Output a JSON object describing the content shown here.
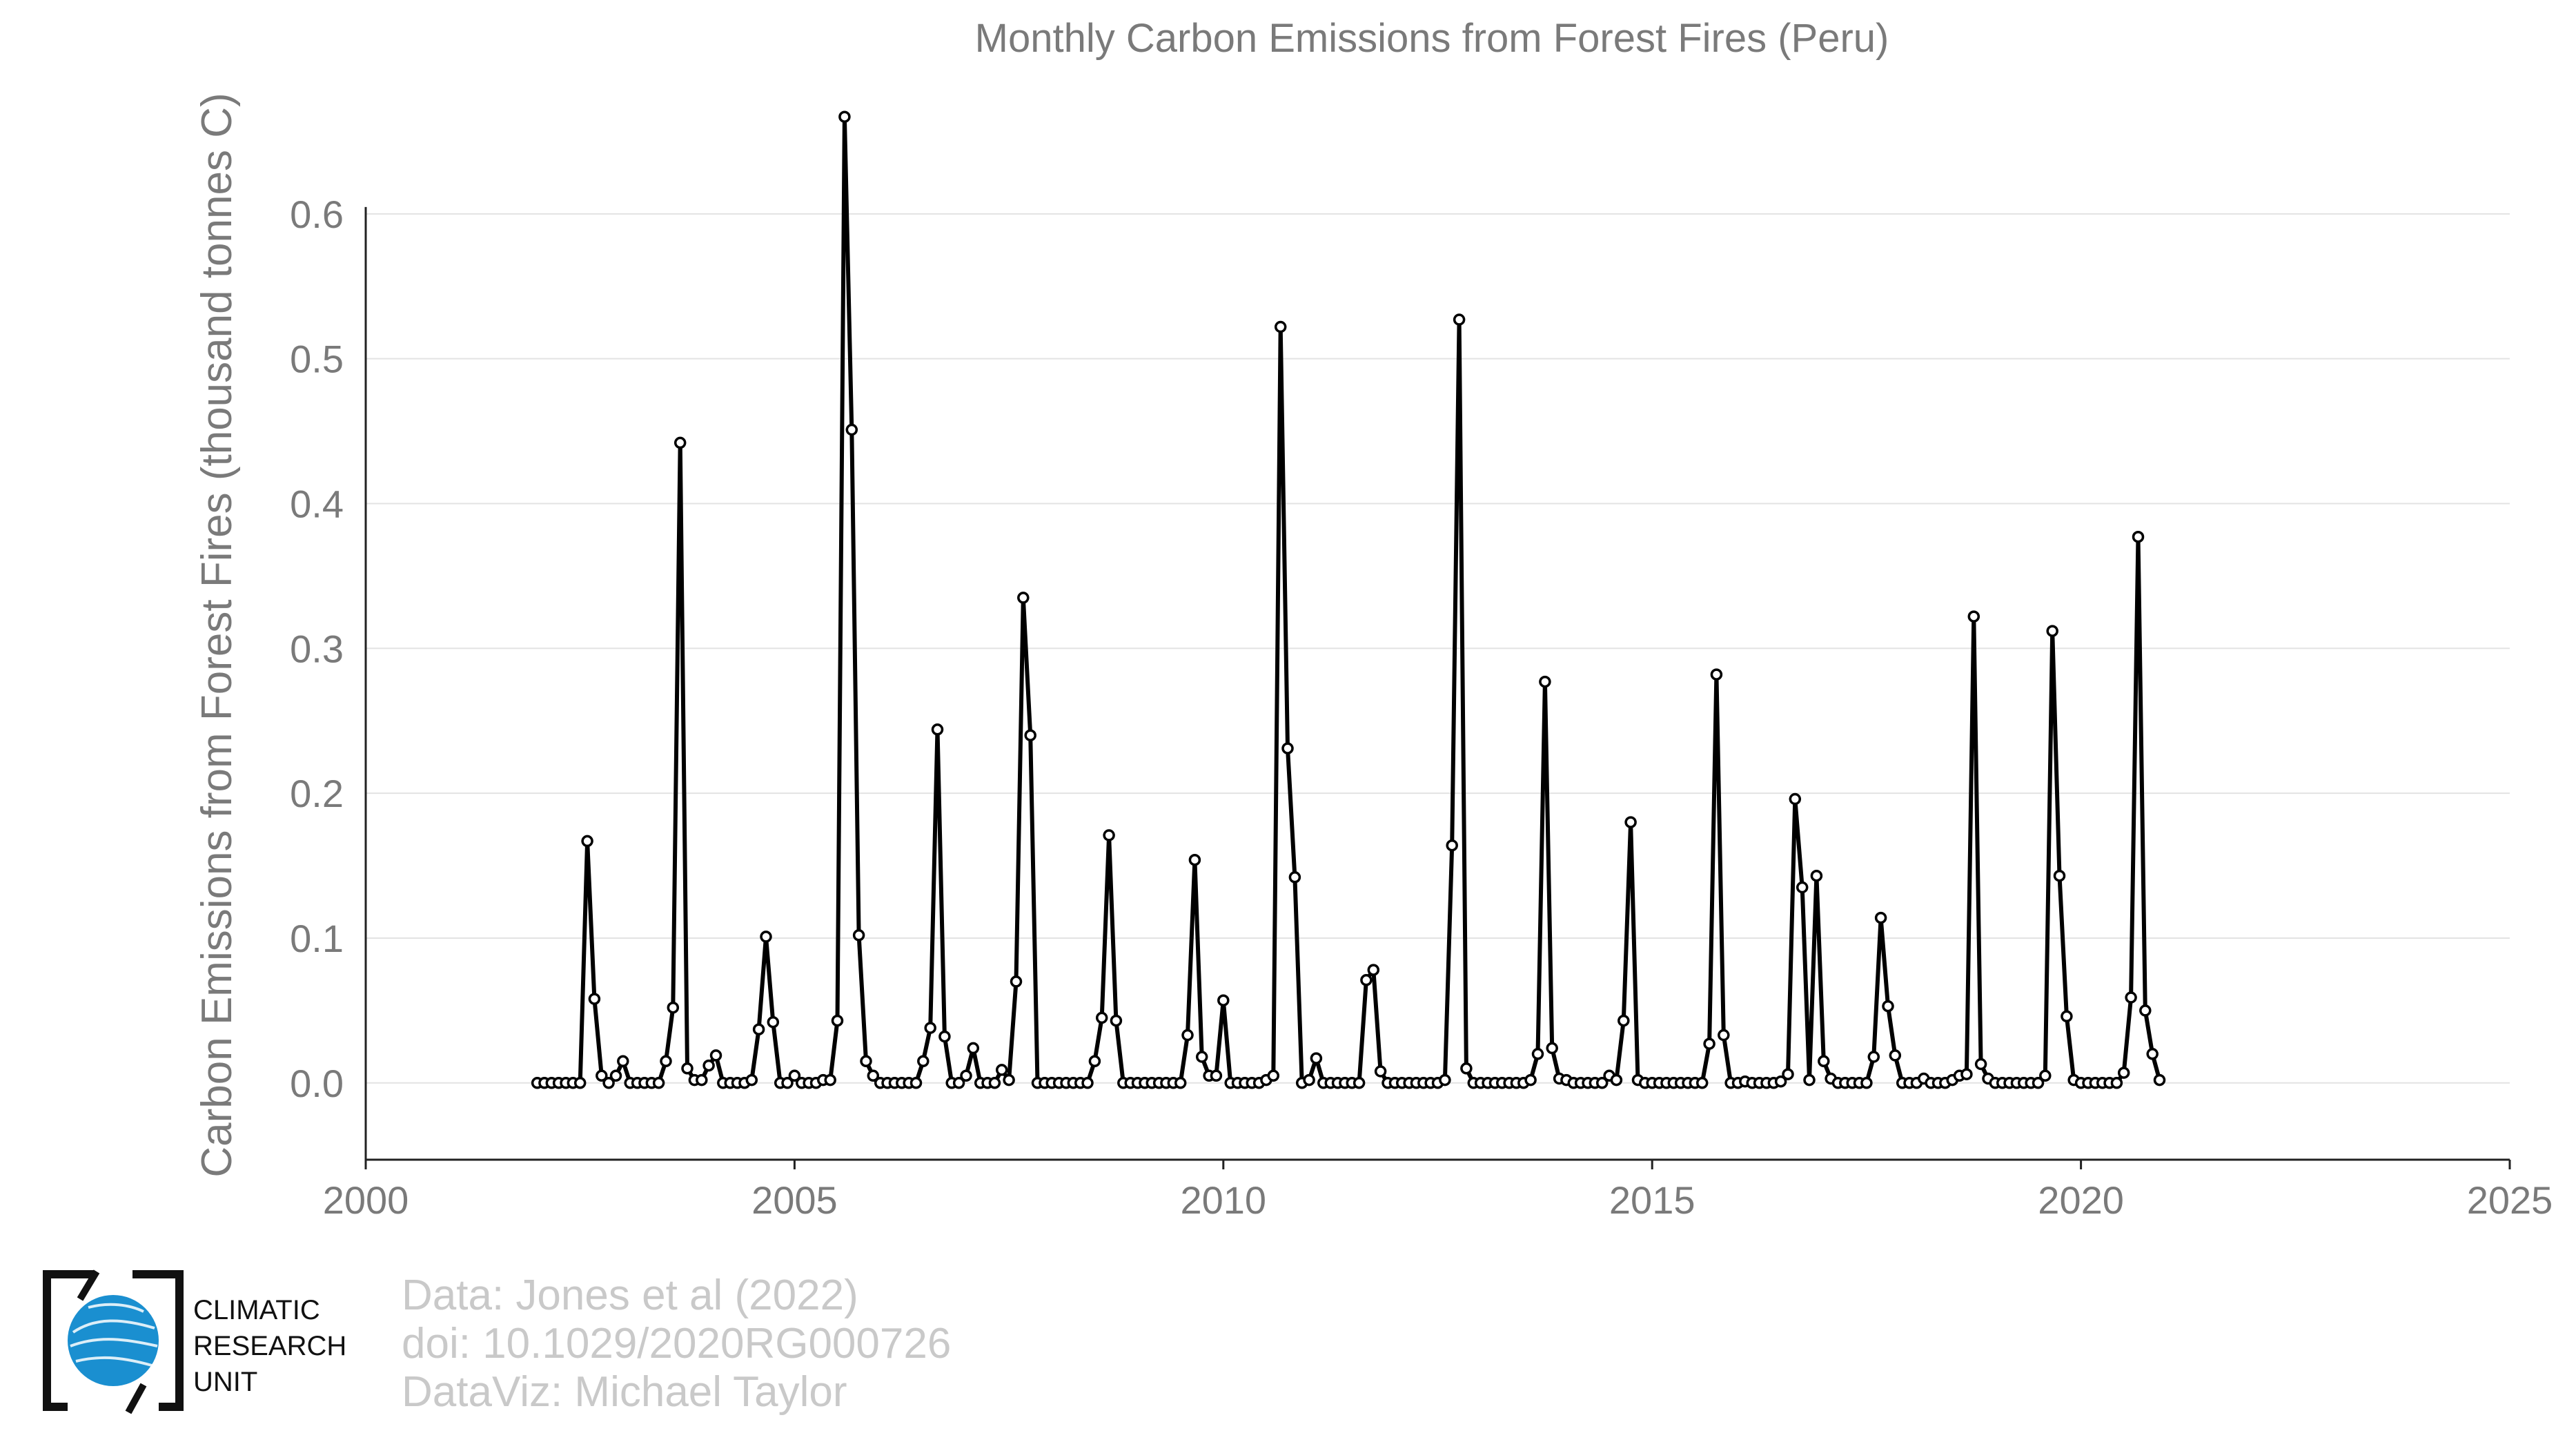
{
  "chart_data": {
    "type": "line",
    "title": "Monthly Carbon Emissions from Forest Fires (Peru)",
    "ylabel": "Carbon Emissions from Forest Fires (thousand tonnes C)",
    "xlabel": "",
    "xlim": [
      2000,
      2025
    ],
    "ylim": [
      -0.053,
      0.7
    ],
    "x_ticks": [
      "2000",
      "2005",
      "2010",
      "2015",
      "2020",
      "2025"
    ],
    "y_ticks": [
      "0.0",
      "0.1",
      "0.2",
      "0.3",
      "0.4",
      "0.5",
      "0.6"
    ],
    "grid": "horizontal",
    "line_color": "#000000",
    "series": [
      {
        "start_year": 2002,
        "start_month": 1,
        "frequency": "monthly",
        "values": [
          0,
          0,
          0,
          0,
          0,
          0,
          0,
          0.167,
          0.058,
          0.005,
          0,
          0.005,
          0.015,
          0,
          0,
          0,
          0,
          0,
          0.015,
          0.052,
          0.442,
          0.01,
          0.002,
          0.002,
          0.012,
          0.019,
          0,
          0,
          0,
          0,
          0.002,
          0.037,
          0.101,
          0.042,
          0,
          0,
          0.005,
          0,
          0,
          0,
          0.002,
          0.002,
          0.043,
          0.667,
          0.451,
          0.102,
          0.015,
          0.005,
          0,
          0,
          0,
          0,
          0,
          0,
          0.015,
          0.038,
          0.244,
          0.032,
          0,
          0,
          0.005,
          0.024,
          0,
          0,
          0,
          0.009,
          0.002,
          0.07,
          0.335,
          0.24,
          0,
          0,
          0,
          0,
          0,
          0,
          0,
          0,
          0.015,
          0.045,
          0.171,
          0.043,
          0,
          0,
          0,
          0,
          0,
          0,
          0,
          0,
          0,
          0.033,
          0.154,
          0.018,
          0.005,
          0.005,
          0.057,
          0,
          0,
          0,
          0,
          0,
          0.002,
          0.005,
          0.522,
          0.231,
          0.142,
          0,
          0.002,
          0.017,
          0,
          0,
          0,
          0,
          0,
          0,
          0.071,
          0.078,
          0.008,
          0,
          0,
          0,
          0,
          0,
          0,
          0,
          0,
          0.002,
          0.164,
          0.527,
          0.01,
          0,
          0,
          0,
          0,
          0,
          0,
          0,
          0,
          0.002,
          0.02,
          0.277,
          0.024,
          0.003,
          0.002,
          0,
          0,
          0,
          0,
          0,
          0.005,
          0.002,
          0.043,
          0.18,
          0.002,
          0,
          0,
          0,
          0,
          0,
          0,
          0,
          0,
          0,
          0.027,
          0.282,
          0.033,
          0,
          0,
          0.001,
          0,
          0,
          0,
          0,
          0.001,
          0.006,
          0.196,
          0.135,
          0.002,
          0.143,
          0.015,
          0.003,
          0,
          0,
          0,
          0,
          0,
          0.018,
          0.114,
          0.053,
          0.019,
          0,
          0,
          0,
          0.003,
          0,
          0,
          0,
          0.002,
          0.005,
          0.006,
          0.322,
          0.013,
          0.003,
          0,
          0,
          0,
          0,
          0,
          0,
          0,
          0.005,
          0.312,
          0.143,
          0.046,
          0.002,
          0,
          0,
          0,
          0,
          0,
          0,
          0.007,
          0.059,
          0.377,
          0.05,
          0.02,
          0.002
        ]
      }
    ]
  },
  "logo": {
    "lines": [
      "CLIMATIC",
      "RESEARCH",
      "UNIT"
    ],
    "icon": "globe-icon",
    "color": "#1a8fd0"
  },
  "credits": {
    "line1": "Data: Jones et al (2022)",
    "line2": "doi: 10.1029/2020RG000726",
    "line3": "DataViz: Michael Taylor"
  }
}
